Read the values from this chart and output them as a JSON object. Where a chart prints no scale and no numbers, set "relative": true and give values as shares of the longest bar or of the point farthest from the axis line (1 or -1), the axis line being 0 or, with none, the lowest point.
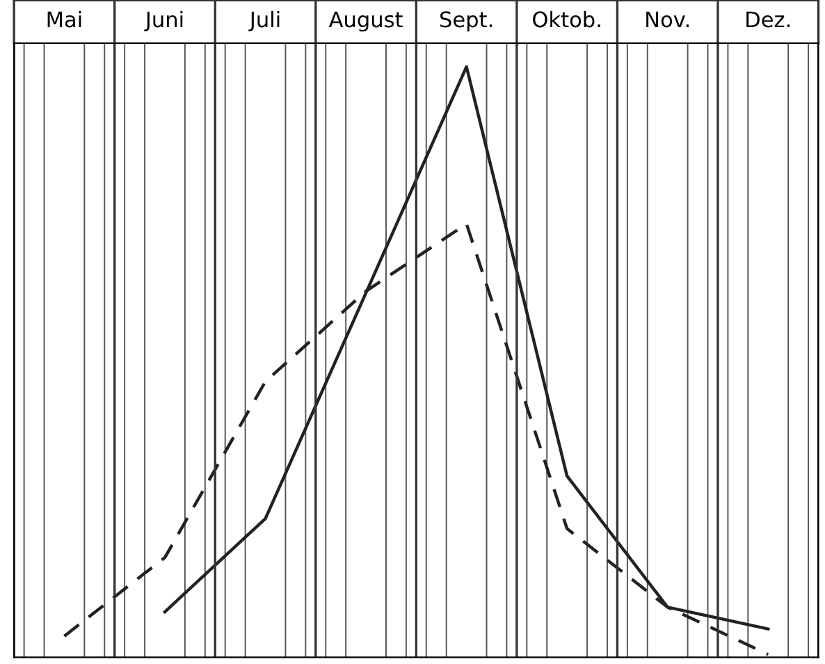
{
  "chart_data": {
    "type": "line",
    "relative": true,
    "categories": [
      "Mai",
      "Juni",
      "Juli",
      "August",
      "Sept.",
      "Oktob.",
      "Nov.",
      "Dez."
    ],
    "series": [
      {
        "color": "#222222",
        "line_style": "solid",
        "values": [
          null,
          0.077,
          0.235,
          0.617,
          1,
          0.307,
          0.085,
          0.048
        ]
      },
      {
        "color": "#222222",
        "line_style": "dashed",
        "values": [
          0.036,
          0.169,
          0.467,
          0.62,
          0.734,
          0.218,
          0.085,
          0.005
        ]
      }
    ],
    "grid": true,
    "legend": false,
    "marker": "none"
  }
}
